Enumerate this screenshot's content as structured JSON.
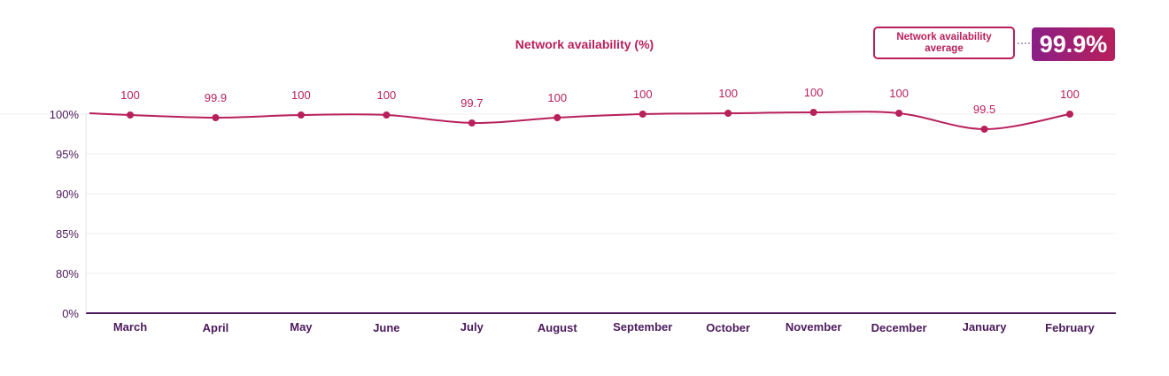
{
  "chart_data": {
    "type": "line",
    "title": "Network availability (%)",
    "categories": [
      "March",
      "April",
      "May",
      "June",
      "July",
      "August",
      "September",
      "October",
      "November",
      "December",
      "January",
      "February"
    ],
    "series": [
      {
        "values": [
          100,
          99.9,
          100,
          100,
          99.7,
          100,
          100,
          100,
          100,
          100,
          99.5,
          100
        ],
        "labels": [
          "100",
          "99.9",
          "100",
          "100",
          "99.7",
          "100",
          "100",
          "100",
          "100",
          "100",
          "99.5",
          "100"
        ]
      }
    ],
    "y_ticks": [
      "100%",
      "95%",
      "90%",
      "85%",
      "80%",
      "0%"
    ],
    "axis_note": "0% – 80% segment compressed; 80% – 100% in 5% steps",
    "grid": true,
    "legend": "none"
  },
  "summary": {
    "label": "Network availability average",
    "value": "99.9%"
  },
  "colors": {
    "line": "#b8205c",
    "axis": "#4b1a5c",
    "grid": "#f0ecf2",
    "accent_gradient_start": "#8a1f86",
    "accent_gradient_end": "#b8205c"
  }
}
